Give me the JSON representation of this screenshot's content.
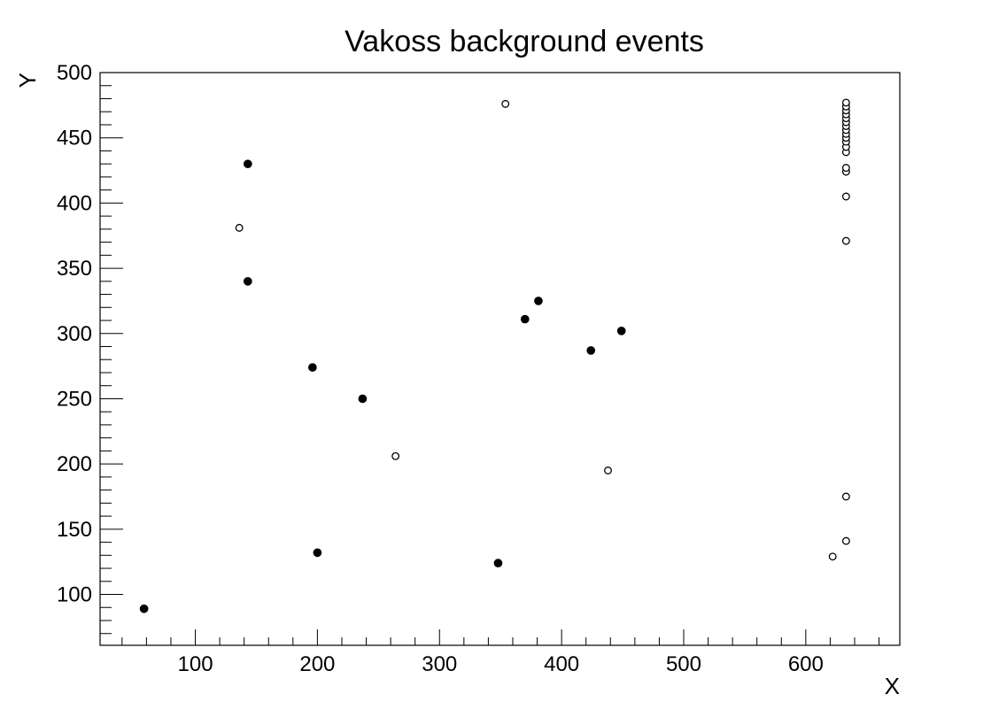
{
  "chart_data": {
    "type": "scatter",
    "title": "Vakoss background events",
    "xlabel": "X",
    "ylabel": "Y",
    "xlim": [
      22,
      677
    ],
    "ylim": [
      61,
      500
    ],
    "x_ticks": [
      "100",
      "200",
      "300",
      "400",
      "500",
      "600"
    ],
    "y_ticks": [
      "100",
      "150",
      "200",
      "250",
      "300",
      "350",
      "400",
      "450",
      "500"
    ],
    "grid": false,
    "series": [
      {
        "marker": "filled-circle",
        "points": [
          {
            "x": 58,
            "y": 89
          },
          {
            "x": 143,
            "y": 430
          },
          {
            "x": 143,
            "y": 340
          },
          {
            "x": 196,
            "y": 274
          },
          {
            "x": 200,
            "y": 132
          },
          {
            "x": 237,
            "y": 250
          },
          {
            "x": 348,
            "y": 124
          },
          {
            "x": 370,
            "y": 311
          },
          {
            "x": 381,
            "y": 325
          },
          {
            "x": 424,
            "y": 287
          },
          {
            "x": 449,
            "y": 302
          }
        ]
      },
      {
        "marker": "open-circle",
        "points": [
          {
            "x": 136,
            "y": 381
          },
          {
            "x": 264,
            "y": 206
          },
          {
            "x": 354,
            "y": 476
          },
          {
            "x": 438,
            "y": 195
          },
          {
            "x": 622,
            "y": 129
          },
          {
            "x": 633,
            "y": 141
          },
          {
            "x": 633,
            "y": 175
          },
          {
            "x": 633,
            "y": 371
          },
          {
            "x": 633,
            "y": 405
          },
          {
            "x": 633,
            "y": 424
          },
          {
            "x": 633,
            "y": 427
          },
          {
            "x": 633,
            "y": 439
          },
          {
            "x": 633,
            "y": 443
          },
          {
            "x": 633,
            "y": 447
          },
          {
            "x": 633,
            "y": 450
          },
          {
            "x": 633,
            "y": 453
          },
          {
            "x": 633,
            "y": 456
          },
          {
            "x": 633,
            "y": 459
          },
          {
            "x": 633,
            "y": 462
          },
          {
            "x": 633,
            "y": 465
          },
          {
            "x": 633,
            "y": 468
          },
          {
            "x": 633,
            "y": 471
          },
          {
            "x": 633,
            "y": 474
          },
          {
            "x": 633,
            "y": 477
          }
        ]
      }
    ]
  }
}
